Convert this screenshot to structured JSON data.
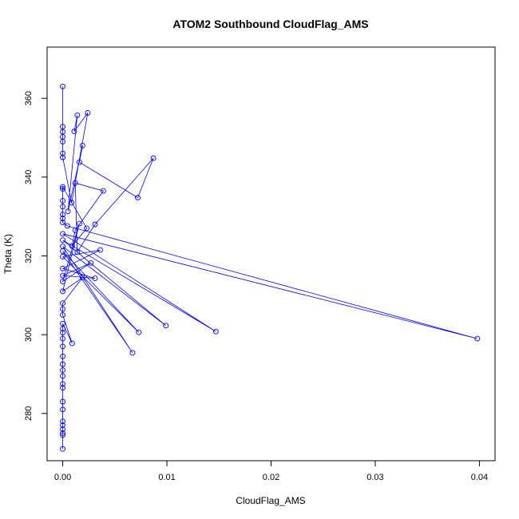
{
  "chart_data": {
    "type": "line",
    "title": "ATOM2 Southbound CloudFlag_AMS",
    "xlabel": "CloudFlag_AMS",
    "ylabel": "Theta (K)",
    "xlim": [
      -0.0015,
      0.0415
    ],
    "ylim": [
      268,
      373
    ],
    "xticks": [
      "0.00",
      "0.01",
      "0.02",
      "0.03",
      "0.04"
    ],
    "xtick_values": [
      0,
      0.01,
      0.02,
      0.03,
      0.04
    ],
    "yticks": [
      "280",
      "300",
      "320",
      "340",
      "360"
    ],
    "ytick_values": [
      280,
      300,
      320,
      340,
      360
    ],
    "grid": false,
    "series": [
      {
        "color": "#0000ff",
        "marker": "open-circle",
        "points": [
          [
            0.0,
            363.0
          ],
          [
            0.0,
            352.8
          ],
          [
            0.0,
            351.5
          ],
          [
            0.0,
            350.2
          ],
          [
            0.0,
            349.0
          ],
          [
            0.0,
            346.0
          ],
          [
            0.0,
            345.0
          ],
          [
            0.00085,
            333.5
          ],
          [
            0.0024,
            356.3
          ],
          [
            0.0011,
            351.6
          ],
          [
            0.0014,
            355.7
          ],
          [
            0.0005,
            331.3
          ],
          [
            0.0019,
            348.0
          ],
          [
            0.0016,
            343.8
          ],
          [
            0.0072,
            334.8
          ],
          [
            0.0087,
            344.8
          ],
          [
            0.0031,
            328.0
          ],
          [
            0.0014,
            321.0
          ],
          [
            0.0012,
            338.5
          ],
          [
            0.0039,
            336.5
          ],
          [
            0.0012,
            326.5
          ],
          [
            0.0009,
            322.5
          ],
          [
            0.0023,
            327.0
          ],
          [
            0.0,
            337.5
          ],
          [
            0.0,
            337.0
          ],
          [
            0.0,
            334.0
          ],
          [
            0.0,
            332.5
          ],
          [
            0.0,
            330.5
          ],
          [
            0.0,
            329.5
          ],
          [
            0.0,
            328.5
          ],
          [
            0.00045,
            327.6
          ],
          [
            0.0398,
            299.0
          ],
          [
            0.0,
            325.6
          ],
          [
            0.0147,
            300.8
          ],
          [
            0.0,
            324.0
          ],
          [
            0.0099,
            302.3
          ],
          [
            0.0,
            322.4
          ],
          [
            0.0067,
            295.4
          ],
          [
            0.0,
            321.2
          ],
          [
            0.0073,
            300.6
          ],
          [
            0.0,
            319.8
          ],
          [
            0.0036,
            321.5
          ],
          [
            0.0,
            316.8
          ],
          [
            0.0031,
            314.3
          ],
          [
            0.0,
            315.0
          ],
          [
            0.0027,
            318.2
          ],
          [
            0.0,
            313.5
          ],
          [
            0.0016,
            328.2
          ],
          [
            0.0,
            311.0
          ],
          [
            0.0019,
            314.5
          ],
          [
            0.0,
            308.0
          ],
          [
            0.0,
            306.5
          ],
          [
            0.0,
            305.0
          ],
          [
            0.0009,
            297.8
          ],
          [
            0.0,
            302.8
          ],
          [
            0.0,
            301.5
          ],
          [
            0.0,
            300.5
          ],
          [
            0.0,
            299.0
          ],
          [
            0.0,
            297.0
          ],
          [
            0.0,
            294.5
          ],
          [
            0.0,
            292.5
          ],
          [
            0.0,
            291.0
          ],
          [
            0.0,
            289.5
          ],
          [
            0.0,
            287.5
          ],
          [
            0.0,
            286.5
          ],
          [
            0.0,
            283.0
          ],
          [
            0.0,
            281.0
          ],
          [
            0.0,
            278.0
          ],
          [
            0.0,
            277.0
          ],
          [
            0.0,
            276.0
          ],
          [
            0.0,
            275.0
          ],
          [
            0.0,
            274.5
          ],
          [
            0.0,
            271.0
          ]
        ]
      }
    ]
  }
}
